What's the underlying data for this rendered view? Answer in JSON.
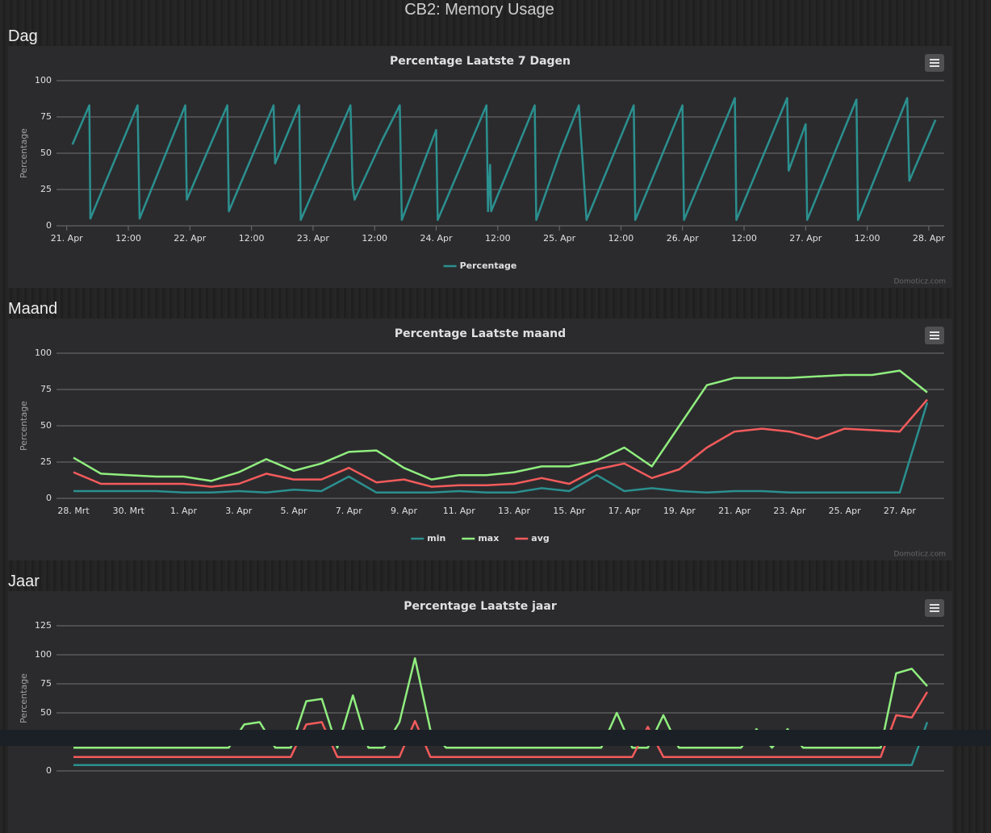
{
  "header": {
    "title": "CB2: Memory Usage"
  },
  "sections": [
    "Dag",
    "Maand",
    "Jaar"
  ],
  "credits": "Domoticz.com",
  "chart_data": [
    {
      "type": "line",
      "title": "Percentage Laatste 7 Dagen",
      "y_label": "Percentage",
      "x": [
        1.1,
        4.4,
        4.6,
        13.8,
        14.2,
        23.1,
        23.4,
        31.3,
        31.6,
        40.3,
        40.6,
        45.3,
        45.6,
        55.3,
        55.7,
        56.1,
        61.6,
        64.9,
        65.3,
        72.0,
        72.3,
        81.8,
        82.1,
        82.5,
        82.7,
        91.2,
        91.5,
        96.1,
        99.8,
        101.3,
        110.5,
        110.8,
        120.0,
        120.3,
        130.2,
        130.5,
        140.4,
        140.7,
        144.0,
        144.3,
        153.9,
        154.2,
        163.8,
        164.2,
        169.3
      ],
      "series": [
        {
          "name": "Percentage",
          "color": "#2b908f",
          "values": [
            56,
            83,
            5,
            83,
            5,
            83,
            18,
            83,
            10,
            83,
            43,
            83,
            4,
            83,
            28,
            18,
            60,
            83,
            4,
            66,
            4,
            83,
            10,
            42,
            10,
            83,
            4,
            50,
            83,
            4,
            83,
            4,
            83,
            4,
            88,
            4,
            88,
            38,
            70,
            4,
            87,
            4,
            88,
            31,
            73
          ]
        }
      ],
      "xlim": [
        -2,
        171
      ],
      "xticks": [
        {
          "value": 0,
          "label": "21. Apr"
        },
        {
          "value": 12,
          "label": "12:00"
        },
        {
          "value": 24,
          "label": "22. Apr"
        },
        {
          "value": 36,
          "label": "12:00"
        },
        {
          "value": 48,
          "label": "23. Apr"
        },
        {
          "value": 60,
          "label": "12:00"
        },
        {
          "value": 72,
          "label": "24. Apr"
        },
        {
          "value": 84,
          "label": "12:00"
        },
        {
          "value": 96,
          "label": "25. Apr"
        },
        {
          "value": 108,
          "label": "12:00"
        },
        {
          "value": 120,
          "label": "26. Apr"
        },
        {
          "value": 132,
          "label": "12:00"
        },
        {
          "value": 144,
          "label": "27. Apr"
        },
        {
          "value": 156,
          "label": "12:00"
        },
        {
          "value": 168,
          "label": "28. Apr"
        }
      ],
      "ylim": [
        0,
        100
      ],
      "yticks": [
        0,
        25,
        50,
        75,
        100
      ],
      "grid": true,
      "legend": "bottom"
    },
    {
      "type": "line",
      "title": "Percentage Laatste maand",
      "y_label": "Percentage",
      "categories": [
        "28. Mrt",
        null,
        "30. Mrt",
        null,
        "1. Apr",
        null,
        "3. Apr",
        null,
        "5. Apr",
        null,
        "7. Apr",
        null,
        "9. Apr",
        null,
        "11. Apr",
        null,
        "13. Apr",
        null,
        "15. Apr",
        null,
        "17. Apr",
        null,
        "19. Apr",
        null,
        "21. Apr",
        null,
        "23. Apr",
        null,
        "25. Apr",
        null,
        "27. Apr",
        null
      ],
      "series": [
        {
          "name": "min",
          "color": "#2b908f",
          "values": [
            5,
            5,
            5,
            5,
            4,
            4,
            5,
            4,
            6,
            5,
            15,
            4,
            4,
            4,
            5,
            4,
            4,
            7,
            5,
            16,
            5,
            7,
            5,
            4,
            5,
            5,
            4,
            4,
            4,
            4,
            4,
            66
          ]
        },
        {
          "name": "max",
          "color": "#90ee7e",
          "values": [
            28,
            17,
            16,
            15,
            15,
            12,
            18,
            27,
            19,
            24,
            32,
            33,
            21,
            13,
            16,
            16,
            18,
            22,
            22,
            26,
            35,
            22,
            50,
            78,
            83,
            83,
            83,
            84,
            85,
            85,
            88,
            73
          ]
        },
        {
          "name": "avg",
          "color": "#f45b5b",
          "values": [
            18,
            10,
            10,
            10,
            10,
            8,
            10,
            17,
            13,
            13,
            21,
            11,
            13,
            8,
            9,
            9,
            10,
            14,
            10,
            20,
            24,
            14,
            20,
            35,
            46,
            48,
            46,
            41,
            48,
            47,
            46,
            68
          ]
        }
      ],
      "ylim": [
        0,
        100
      ],
      "yticks": [
        0,
        25,
        50,
        75,
        100
      ],
      "grid": true,
      "legend": "bottom"
    },
    {
      "type": "line",
      "title": "Percentage Laatste jaar",
      "y_label": "Percentage",
      "series": [
        {
          "color": "#2b908f",
          "values": [
            5,
            5,
            5,
            5,
            5,
            5,
            5,
            5,
            5,
            5,
            5,
            5,
            5,
            5,
            5,
            5,
            5,
            5,
            5,
            5,
            5,
            5,
            5,
            5,
            5,
            5,
            5,
            5,
            5,
            5,
            5,
            5,
            5,
            5,
            5,
            5,
            5,
            5,
            5,
            5,
            5,
            5,
            5,
            5,
            5,
            5,
            5,
            5,
            5,
            5,
            5,
            5,
            5,
            5,
            5,
            42
          ]
        },
        {
          "color": "#90ee7e",
          "values": [
            20,
            20,
            20,
            20,
            20,
            20,
            20,
            20,
            20,
            20,
            20,
            40,
            42,
            20,
            20,
            60,
            62,
            20,
            65,
            20,
            20,
            42,
            97,
            35,
            20,
            20,
            20,
            20,
            20,
            20,
            20,
            20,
            20,
            20,
            20,
            50,
            20,
            20,
            48,
            20,
            20,
            20,
            20,
            20,
            36,
            20,
            36,
            20,
            20,
            20,
            20,
            20,
            20,
            84,
            88,
            73
          ]
        },
        {
          "color": "#f45b5b",
          "values": [
            12,
            12,
            12,
            12,
            12,
            12,
            12,
            12,
            12,
            12,
            12,
            12,
            12,
            12,
            12,
            40,
            42,
            12,
            12,
            12,
            12,
            12,
            43,
            12,
            12,
            12,
            12,
            12,
            12,
            12,
            12,
            12,
            12,
            12,
            12,
            12,
            12,
            38,
            12,
            12,
            12,
            12,
            12,
            12,
            12,
            12,
            12,
            12,
            12,
            12,
            12,
            12,
            12,
            48,
            46,
            68
          ]
        }
      ],
      "ylim": [
        0,
        125
      ],
      "yticks": [
        0,
        25,
        50,
        75,
        100,
        125
      ],
      "grid": true
    }
  ]
}
